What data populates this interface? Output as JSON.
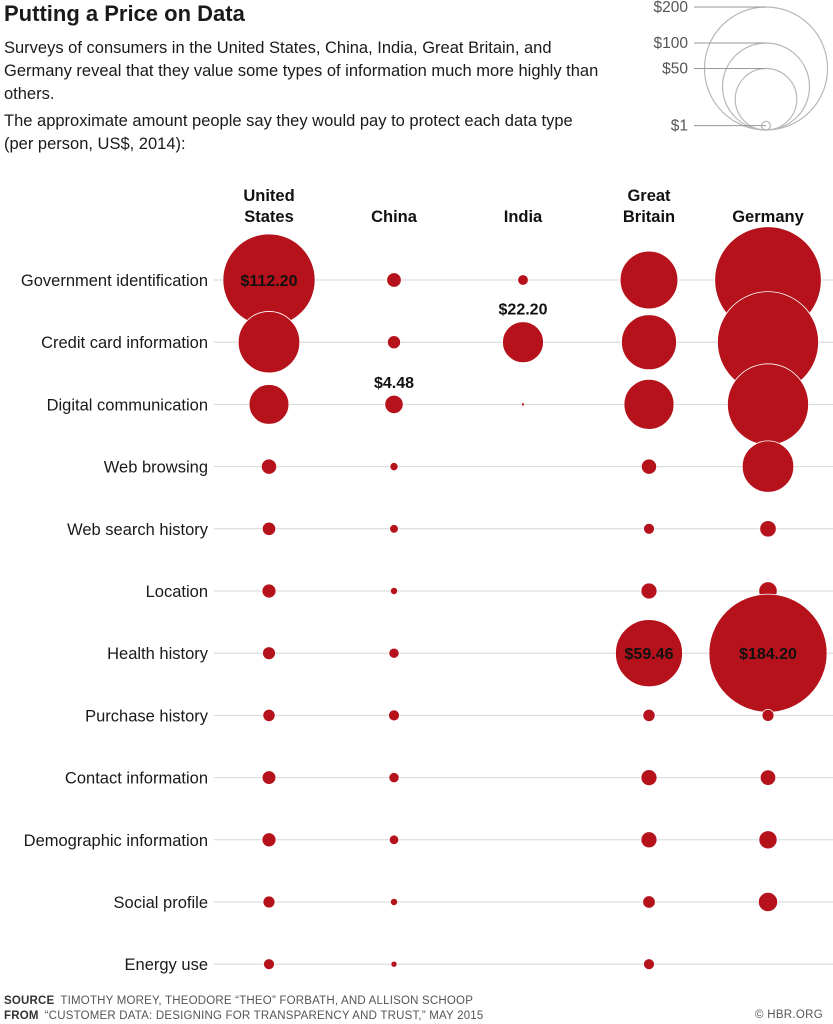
{
  "title": "Putting a Price on Data",
  "subtitle": "Surveys of consumers in the United States, China, India, Great Britain, and Germany reveal that they value some types of information much more highly than others.",
  "note": "The approximate amount people say they would pay to protect each data type (per person, US$, 2014):",
  "legend": {
    "items": [
      {
        "label": "$200",
        "value": 200
      },
      {
        "label": "$100",
        "value": 100
      },
      {
        "label": "$50",
        "value": 50
      },
      {
        "label": "$1",
        "value": 1
      }
    ]
  },
  "chart_data": {
    "type": "bubble-grid",
    "columns": [
      {
        "label": [
          "United",
          "States"
        ]
      },
      {
        "label": [
          "China"
        ]
      },
      {
        "label": [
          "India"
        ]
      },
      {
        "label": [
          "Great",
          "Britain"
        ]
      },
      {
        "label": [
          "Germany"
        ]
      }
    ],
    "rows": [
      "Government identification",
      "Credit card information",
      "Digital communication",
      "Web browsing",
      "Web search history",
      "Location",
      "Health history",
      "Purchase history",
      "Contact information",
      "Demographic information",
      "Social profile",
      "Energy use"
    ],
    "values": [
      [
        112.2,
        2.8,
        1.5,
        44,
        150
      ],
      [
        50,
        2.3,
        22.2,
        40,
        135
      ],
      [
        21,
        4.48,
        0.08,
        33,
        87
      ],
      [
        3.1,
        0.9,
        null,
        3.1,
        35
      ],
      [
        2.4,
        1.0,
        null,
        1.6,
        3.6
      ],
      [
        2.6,
        0.7,
        null,
        3.4,
        4.5
      ],
      [
        2.2,
        1.4,
        null,
        59.46,
        184.2
      ],
      [
        2.0,
        1.6,
        null,
        2.0,
        1.9
      ],
      [
        2.5,
        1.4,
        null,
        3.4,
        3.2
      ],
      [
        2.6,
        1.2,
        null,
        3.4,
        4.4
      ],
      [
        1.9,
        0.7,
        null,
        2.1,
        4.9
      ],
      [
        1.6,
        0.5,
        null,
        1.6,
        null
      ]
    ],
    "labels": [
      {
        "row": 0,
        "col": 0,
        "text": "$112.20",
        "position": "center"
      },
      {
        "row": 1,
        "col": 2,
        "text": "$22.20",
        "position": "above"
      },
      {
        "row": 2,
        "col": 1,
        "text": "$4.48",
        "position": "above"
      },
      {
        "row": 6,
        "col": 3,
        "text": "$59.46",
        "position": "center"
      },
      {
        "row": 6,
        "col": 4,
        "text": "$184.20",
        "position": "center"
      }
    ],
    "scale": "bubble area proportional to value",
    "bubble_color": "#b5121b",
    "grid": true
  },
  "footer": {
    "source_key": "SOURCE",
    "source_text": "TIMOTHY MOREY, THEODORE “THEO” FORBATH, AND ALLISON SCHOOP",
    "from_key": "FROM",
    "from_text": "“CUSTOMER DATA: DESIGNING FOR TRANSPARENCY AND TRUST,” MAY 2015",
    "credit": "© HBR.ORG"
  }
}
